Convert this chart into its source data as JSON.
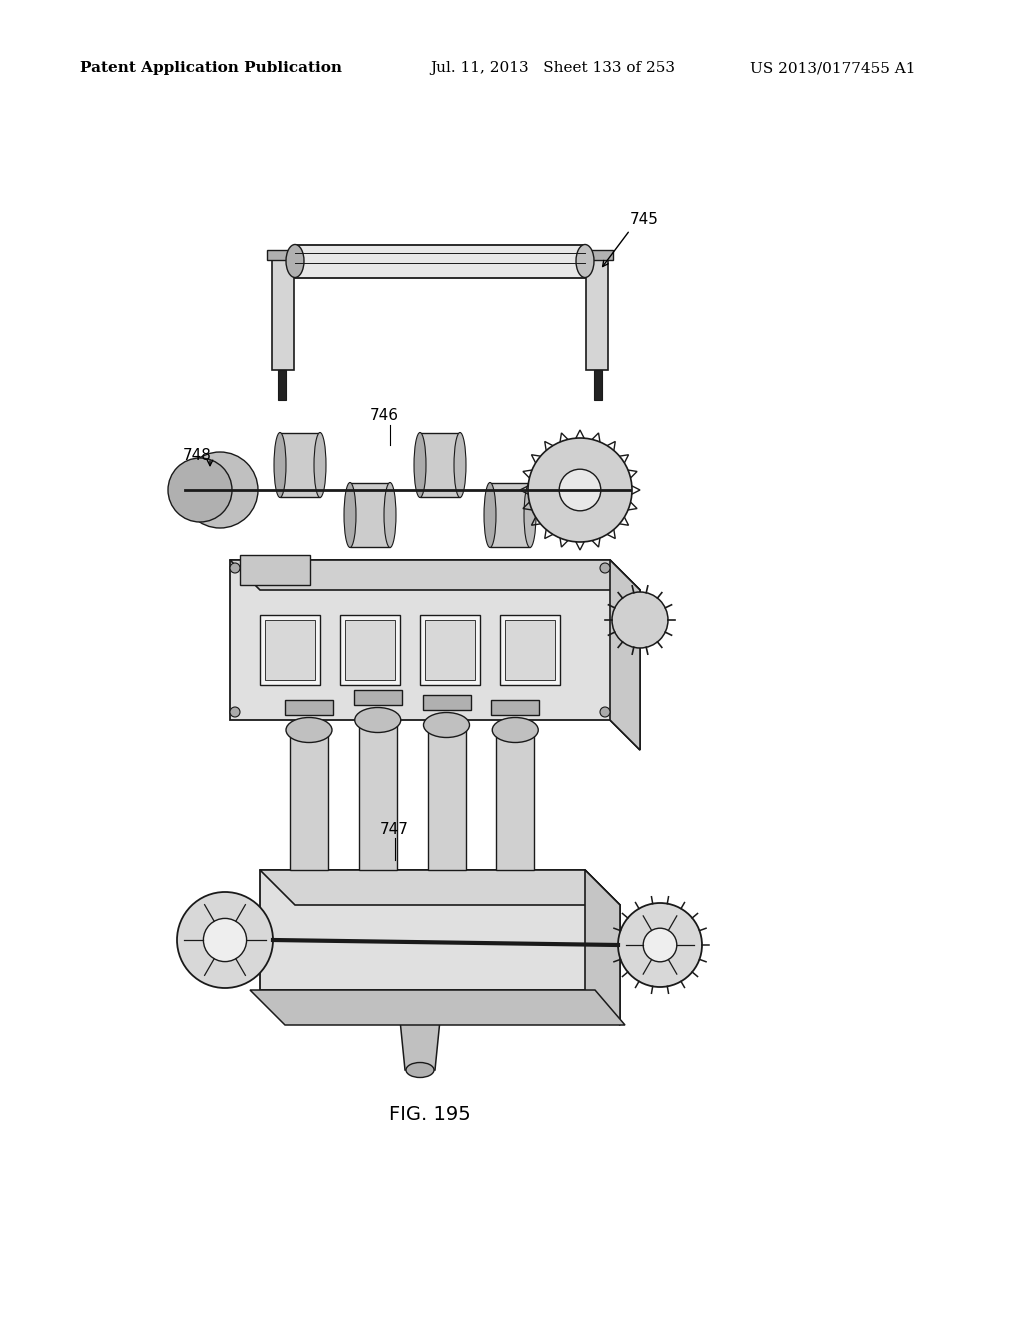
{
  "background_color": "#ffffff",
  "header_left": "Patent Application Publication",
  "header_center": "Jul. 11, 2013   Sheet 133 of 253",
  "header_right": "US 2013/0177455 A1",
  "figure_label": "FIG. 195",
  "label_745": "745",
  "label_746": "746",
  "label_747": "747",
  "label_748": "748",
  "text_color": "#000000",
  "line_color": "#1a1a1a",
  "header_fontsize": 11,
  "label_fontsize": 11,
  "fig_label_fontsize": 14
}
